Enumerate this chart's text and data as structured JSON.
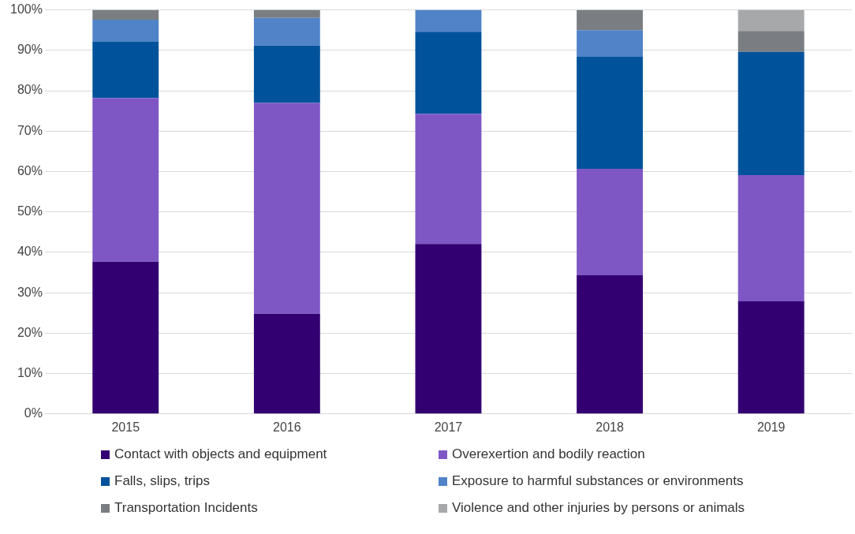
{
  "chart_data": {
    "type": "bar",
    "stacked": true,
    "categories": [
      "2015",
      "2016",
      "2017",
      "2018",
      "2019"
    ],
    "series": [
      {
        "name": "Contact with objects and equipment",
        "color": "#330072",
        "values": [
          37.7,
          24.8,
          42.1,
          34.3,
          27.9
        ]
      },
      {
        "name": "Overexertion and bodily reaction",
        "color": "#7e57c5",
        "values": [
          40.5,
          52.2,
          32.2,
          26.4,
          31.2
        ]
      },
      {
        "name": "Falls, slips, trips",
        "color": "#00539b",
        "values": [
          14.0,
          14.2,
          20.3,
          27.7,
          30.5
        ]
      },
      {
        "name": "Exposure to harmful substances or environments",
        "color": "#5083c8",
        "values": [
          5.4,
          6.8,
          5.4,
          6.6,
          0
        ]
      },
      {
        "name": "Transportation Incidents",
        "color": "#7a7e83",
        "values": [
          2.4,
          2.0,
          0,
          5.0,
          5.2
        ]
      },
      {
        "name": "Violence and other injuries by persons or animals",
        "color": "#a7a8aa",
        "values": [
          0,
          0,
          0,
          0,
          5.2
        ]
      }
    ],
    "ylim": [
      0,
      100
    ],
    "yticks": [
      {
        "value": 0,
        "label": "0%"
      },
      {
        "value": 10,
        "label": "10%"
      },
      {
        "value": 20,
        "label": "20%"
      },
      {
        "value": 30,
        "label": "30%"
      },
      {
        "value": 40,
        "label": "40%"
      },
      {
        "value": 50,
        "label": "50%"
      },
      {
        "value": 60,
        "label": "60%"
      },
      {
        "value": 70,
        "label": "70%"
      },
      {
        "value": 80,
        "label": "80%"
      },
      {
        "value": 90,
        "label": "90%"
      },
      {
        "value": 100,
        "label": "100%"
      }
    ],
    "grid": "y",
    "legend": "bottom"
  }
}
